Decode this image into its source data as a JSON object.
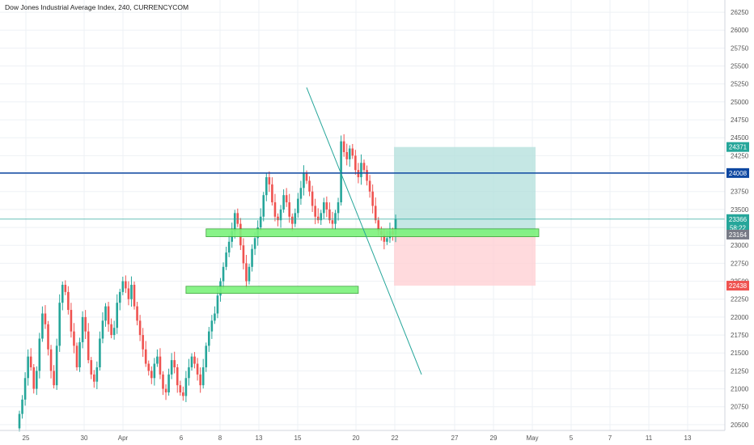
{
  "colors": {
    "up": "#26a69a",
    "down": "#ef5350",
    "grid": "#eef1f5",
    "trendline": "#26a69a",
    "resistance": "#0d47a1",
    "current_price_line": "#26a69a",
    "zone_fill": "#7cf27c",
    "zone_stroke": "#2e9b2e",
    "target_fill": "#b2dfdb",
    "stop_fill": "#ffcdd2"
  },
  "chart_data": {
    "type": "candlestick",
    "title": "Dow Jones Industrial Average Index, 240, CURRENCYCOM",
    "x_ticks": [
      "25",
      "30",
      "Apr",
      "6",
      "8",
      "13",
      "15",
      "20",
      "22",
      "27",
      "29",
      "May",
      "5",
      "7",
      "11",
      "13"
    ],
    "y_ticks": [
      20500,
      20750,
      21000,
      21250,
      21500,
      21750,
      22000,
      22250,
      22500,
      22750,
      23000,
      23250,
      23500,
      23750,
      24000,
      24250,
      24500,
      24750,
      25000,
      25250,
      25500,
      25750,
      26000,
      26250
    ],
    "ylim": [
      20420,
      26420
    ],
    "closes": [
      20650,
      20850,
      21150,
      21450,
      21300,
      21000,
      21250,
      21700,
      22050,
      21900,
      21550,
      21250,
      21050,
      21600,
      22200,
      22450,
      22350,
      22100,
      21800,
      21600,
      21300,
      21650,
      22000,
      21800,
      21400,
      21200,
      21100,
      21300,
      21700,
      21950,
      22150,
      21900,
      21750,
      21850,
      22200,
      22350,
      22500,
      22400,
      22250,
      22450,
      22150,
      21950,
      21750,
      21550,
      21350,
      21250,
      21150,
      21350,
      21450,
      21200,
      21000,
      20950,
      21200,
      21400,
      21300,
      21050,
      20950,
      20900,
      21150,
      21300,
      21450,
      21350,
      21200,
      21050,
      21300,
      21600,
      21800,
      21950,
      22050,
      22300,
      22500,
      22700,
      22900,
      23050,
      23200,
      23450,
      23300,
      23000,
      22750,
      22500,
      22700,
      22950,
      23100,
      23250,
      23400,
      23700,
      23950,
      23850,
      23600,
      23400,
      23350,
      23500,
      23700,
      23600,
      23400,
      23300,
      23450,
      23650,
      23800,
      24000,
      23900,
      23750,
      23550,
      23400,
      23350,
      23450,
      23600,
      23500,
      23350,
      23300,
      23450,
      23600,
      24450,
      24300,
      24200,
      24350,
      24250,
      24050,
      23950,
      24150,
      24050,
      23900,
      23750,
      23550,
      23350,
      23200,
      23150,
      23050,
      23100,
      23200,
      23150,
      23366
    ],
    "hline_resistance": 24008,
    "current_price": 23366,
    "countdown": "58:22",
    "position": {
      "entry": 23164,
      "target": 24371,
      "stop": 22438
    },
    "zones": [
      {
        "from_index": 65,
        "to_index": "end",
        "low": 23120,
        "high": 23230
      },
      {
        "from_index": 58,
        "to_index": 118,
        "low": 22330,
        "high": 22430
      }
    ],
    "trendline": [
      {
        "index": 100,
        "price": 25200
      },
      {
        "index": 140,
        "price": 21200
      }
    ],
    "price_badges": [
      {
        "label": "24371",
        "value": 24371,
        "color": "#26a69a"
      },
      {
        "label": "24008",
        "value": 24008,
        "color": "#0d47a1"
      },
      {
        "label": "23366",
        "value": 23366,
        "color": "#26a69a"
      },
      {
        "label": "58:22",
        "value": 23245,
        "color": "#26a69a"
      },
      {
        "label": "23164",
        "value": 23150,
        "color": "#787b86"
      },
      {
        "label": "22438",
        "value": 22438,
        "color": "#ef5350"
      }
    ]
  }
}
